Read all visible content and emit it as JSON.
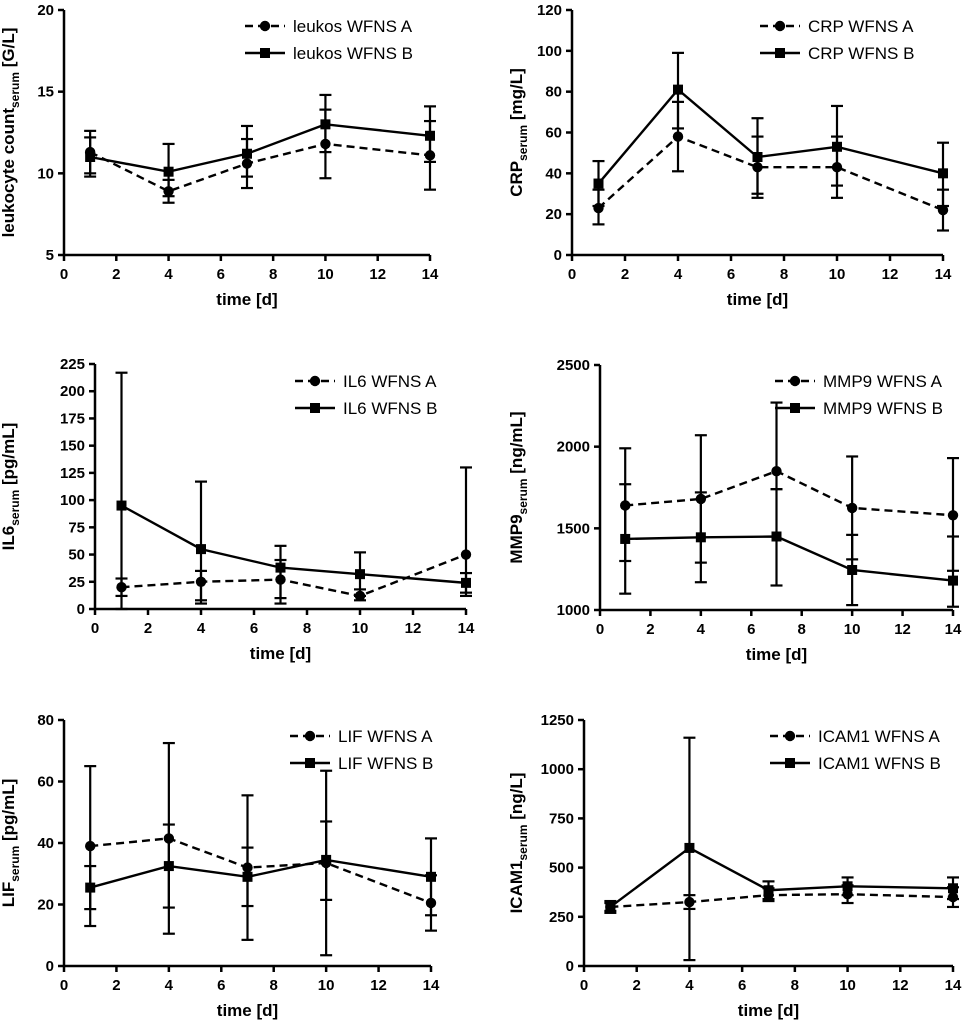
{
  "chart_data": [
    {
      "type": "line",
      "ylabel": {
        "main": "leukocyte count",
        "sub": "serum",
        "unit": " [G/L]"
      },
      "xlabel": "time [d]",
      "x": [
        1,
        4,
        7,
        10,
        14
      ],
      "xlim": [
        0,
        14
      ],
      "xticks": [
        0,
        2,
        4,
        6,
        8,
        10,
        12,
        14
      ],
      "ylim": [
        5,
        20
      ],
      "yticks": [
        5,
        10,
        15,
        20
      ],
      "legend_position": "top-right",
      "series": [
        {
          "name": "leukos WFNS A",
          "marker": "circle",
          "style": "dashed",
          "values": [
            11.3,
            8.9,
            10.6,
            11.8,
            11.1
          ],
          "err_low": [
            9.8,
            8.2,
            9.1,
            9.7,
            9.0
          ],
          "err_high": [
            12.6,
            9.6,
            12.1,
            13.9,
            13.2
          ]
        },
        {
          "name": "leukos WFNS B",
          "marker": "square",
          "style": "solid",
          "values": [
            11.0,
            10.1,
            11.2,
            13.0,
            12.3
          ],
          "err_low": [
            10.0,
            8.6,
            9.8,
            11.3,
            10.7
          ],
          "err_high": [
            12.2,
            11.8,
            12.9,
            14.8,
            14.1
          ]
        }
      ]
    },
    {
      "type": "line",
      "ylabel": {
        "main": "CRP",
        "sub": "serum",
        "unit": " [mg/L]"
      },
      "xlabel": "time [d]",
      "x": [
        1,
        4,
        7,
        10,
        14
      ],
      "xlim": [
        0,
        14
      ],
      "xticks": [
        0,
        2,
        4,
        6,
        8,
        10,
        12,
        14
      ],
      "ylim": [
        0,
        120
      ],
      "yticks": [
        0,
        20,
        40,
        60,
        80,
        100,
        120
      ],
      "legend_position": "top-right",
      "series": [
        {
          "name": "CRP WFNS A",
          "marker": "circle",
          "style": "dashed",
          "values": [
            23,
            58,
            43,
            43,
            22
          ],
          "err_low": [
            15,
            41,
            28,
            28,
            12
          ],
          "err_high": [
            32,
            75,
            58,
            58,
            32
          ]
        },
        {
          "name": "CRP WFNS B",
          "marker": "square",
          "style": "solid",
          "values": [
            35,
            81,
            48,
            53,
            40
          ],
          "err_low": [
            24,
            62,
            30,
            34,
            24
          ],
          "err_high": [
            46,
            99,
            67,
            73,
            55
          ]
        }
      ]
    },
    {
      "type": "line",
      "ylabel": {
        "main": "IL6",
        "sub": "serum",
        "unit": " [pg/mL]"
      },
      "xlabel": "time [d]",
      "x": [
        1,
        4,
        7,
        10,
        14
      ],
      "xlim": [
        0,
        14
      ],
      "xticks": [
        0,
        2,
        4,
        6,
        8,
        10,
        12,
        14
      ],
      "ylim": [
        0,
        225
      ],
      "yticks": [
        0,
        25,
        50,
        75,
        100,
        125,
        150,
        175,
        200,
        225
      ],
      "legend_position": "top-right",
      "series": [
        {
          "name": "IL6 WFNS A",
          "marker": "circle",
          "style": "dashed",
          "values": [
            20,
            25,
            27,
            12,
            50
          ],
          "err_low": [
            12,
            8,
            10,
            8,
            12
          ],
          "err_high": [
            28,
            35,
            45,
            18,
            130
          ]
        },
        {
          "name": "IL6 WFNS B",
          "marker": "square",
          "style": "solid",
          "values": [
            95,
            55,
            38,
            32,
            24
          ],
          "err_low": [
            0,
            5,
            5,
            12,
            15
          ],
          "err_high": [
            217,
            117,
            58,
            52,
            33
          ]
        }
      ]
    },
    {
      "type": "line",
      "ylabel": {
        "main": "MMP9",
        "sub": "serum",
        "unit": " [ng/mL]"
      },
      "xlabel": "time [d]",
      "x": [
        1,
        4,
        7,
        10,
        14
      ],
      "xlim": [
        0,
        14
      ],
      "xticks": [
        0,
        2,
        4,
        6,
        8,
        10,
        12,
        14
      ],
      "ylim": [
        1000,
        2500
      ],
      "yticks": [
        1000,
        1500,
        2000,
        2500
      ],
      "legend_position": "top-right",
      "series": [
        {
          "name": "MMP9 WFNS A",
          "marker": "circle",
          "style": "dashed",
          "values": [
            1640,
            1680,
            1850,
            1625,
            1580
          ],
          "err_low": [
            1300,
            1290,
            1740,
            1310,
            1240
          ],
          "err_high": [
            1990,
            2070,
            2270,
            1940,
            1930
          ]
        },
        {
          "name": "MMP9 WFNS B",
          "marker": "square",
          "style": "solid",
          "values": [
            1435,
            1445,
            1450,
            1245,
            1180
          ],
          "err_low": [
            1100,
            1170,
            1150,
            1030,
            1020
          ],
          "err_high": [
            1770,
            1720,
            1740,
            1460,
            1450
          ]
        }
      ]
    },
    {
      "type": "line",
      "ylabel": {
        "main": "LIF",
        "sub": "serum",
        "unit": " [pg/mL]"
      },
      "xlabel": "time [d]",
      "x": [
        1,
        4,
        7,
        10,
        14
      ],
      "xlim": [
        0,
        14
      ],
      "xticks": [
        0,
        2,
        4,
        6,
        8,
        10,
        12,
        14
      ],
      "ylim": [
        0,
        80
      ],
      "yticks": [
        0,
        20,
        40,
        60,
        80
      ],
      "legend_position": "top-right",
      "series": [
        {
          "name": "LIF WFNS A",
          "marker": "circle",
          "style": "dashed",
          "values": [
            39,
            41.5,
            32,
            33.5,
            20.5
          ],
          "err_low": [
            13,
            10.5,
            8.5,
            3.5,
            11.5
          ],
          "err_high": [
            65,
            72.5,
            55.5,
            63.5,
            29.5
          ]
        },
        {
          "name": "LIF WFNS B",
          "marker": "square",
          "style": "solid",
          "values": [
            25.5,
            32.5,
            29,
            34.5,
            29
          ],
          "err_low": [
            18.5,
            19,
            19.5,
            21.5,
            16.5
          ],
          "err_high": [
            32.5,
            46,
            38.5,
            47,
            41.5
          ]
        }
      ]
    },
    {
      "type": "line",
      "ylabel": {
        "main": "ICAM1",
        "sub": "serum",
        "unit": " [ng/L]"
      },
      "xlabel": "time [d]",
      "x": [
        1,
        4,
        7,
        10,
        14
      ],
      "xlim": [
        0,
        14
      ],
      "xticks": [
        0,
        2,
        4,
        6,
        8,
        10,
        12,
        14
      ],
      "ylim": [
        0,
        1250
      ],
      "yticks": [
        0,
        250,
        500,
        750,
        1000,
        1250
      ],
      "legend_position": "top-right",
      "series": [
        {
          "name": "ICAM1 WFNS A",
          "marker": "circle",
          "style": "dashed",
          "values": [
            300,
            325,
            360,
            365,
            350
          ],
          "err_low": [
            280,
            290,
            330,
            320,
            300
          ],
          "err_high": [
            320,
            360,
            395,
            410,
            400
          ]
        },
        {
          "name": "ICAM1 WFNS B",
          "marker": "square",
          "style": "solid",
          "values": [
            300,
            600,
            385,
            405,
            395
          ],
          "err_low": [
            270,
            30,
            340,
            360,
            340
          ],
          "err_high": [
            330,
            1160,
            430,
            450,
            450
          ]
        }
      ]
    }
  ]
}
